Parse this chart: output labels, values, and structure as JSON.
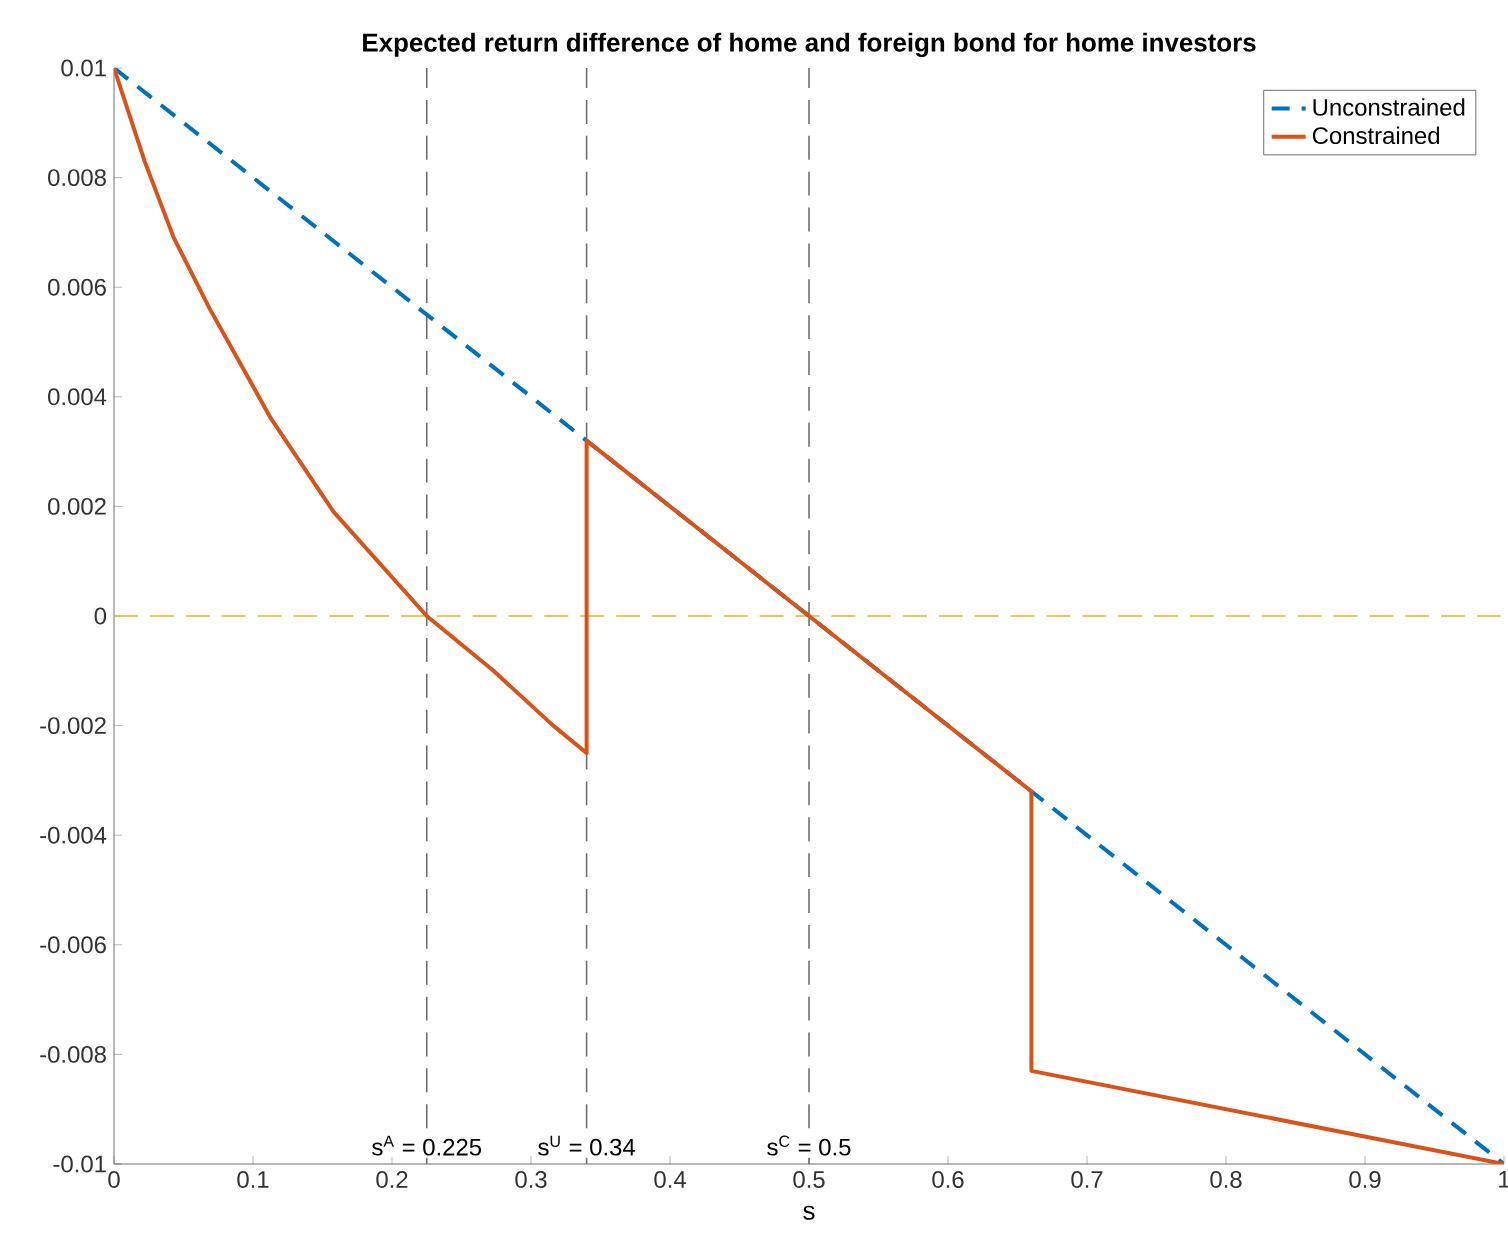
{
  "chart_data": {
    "type": "line",
    "title": "Expected return difference of home and foreign bond for home investors",
    "xlabel": "s",
    "series": [
      {
        "name": "Unconstrained",
        "color": "#0072bd",
        "line_style": "dashed",
        "x": [
          0,
          1
        ],
        "values": [
          0.01,
          -0.01
        ]
      },
      {
        "name": "Constrained",
        "color": "#d95319",
        "line_style": "solid",
        "x": [
          0,
          0.022,
          0.043,
          0.069,
          0.113,
          0.158,
          0.225,
          0.273,
          0.316,
          0.34,
          0.34,
          0.5,
          0.66,
          0.66,
          1
        ],
        "values": [
          0.01,
          0.0083,
          0.0069,
          0.0056,
          0.0036,
          0.0019,
          0,
          -0.001,
          -0.002,
          -0.0025,
          0.0032,
          0,
          -0.0032,
          -0.0083,
          -0.01
        ]
      }
    ],
    "xlim": [
      0,
      1
    ],
    "ylim": [
      -0.01,
      0.01
    ],
    "xticks": [
      0,
      0.1,
      0.2,
      0.3,
      0.4,
      0.5,
      0.6,
      0.7,
      0.8,
      0.9,
      1
    ],
    "yticks": [
      -0.01,
      -0.008,
      -0.006,
      -0.004,
      -0.002,
      0,
      0.002,
      0.004,
      0.006,
      0.008,
      0.01
    ],
    "ref_lines": [
      {
        "axis": "x",
        "value": 0.225,
        "label": "s$^{A}$ = 0.225",
        "color": "#707070",
        "line_style": "dashed"
      },
      {
        "axis": "x",
        "value": 0.34,
        "label": "s$^{U}$ = 0.34",
        "color": "#707070",
        "line_style": "dashed"
      },
      {
        "axis": "x",
        "value": 0.5,
        "label": "s$^{C}$ = 0.5",
        "color": "#707070",
        "line_style": "dashed"
      },
      {
        "axis": "y",
        "value": 0,
        "color": "#edb120",
        "line_style": "dashed"
      }
    ],
    "grid": false,
    "legend": "top right",
    "marker": "none"
  }
}
